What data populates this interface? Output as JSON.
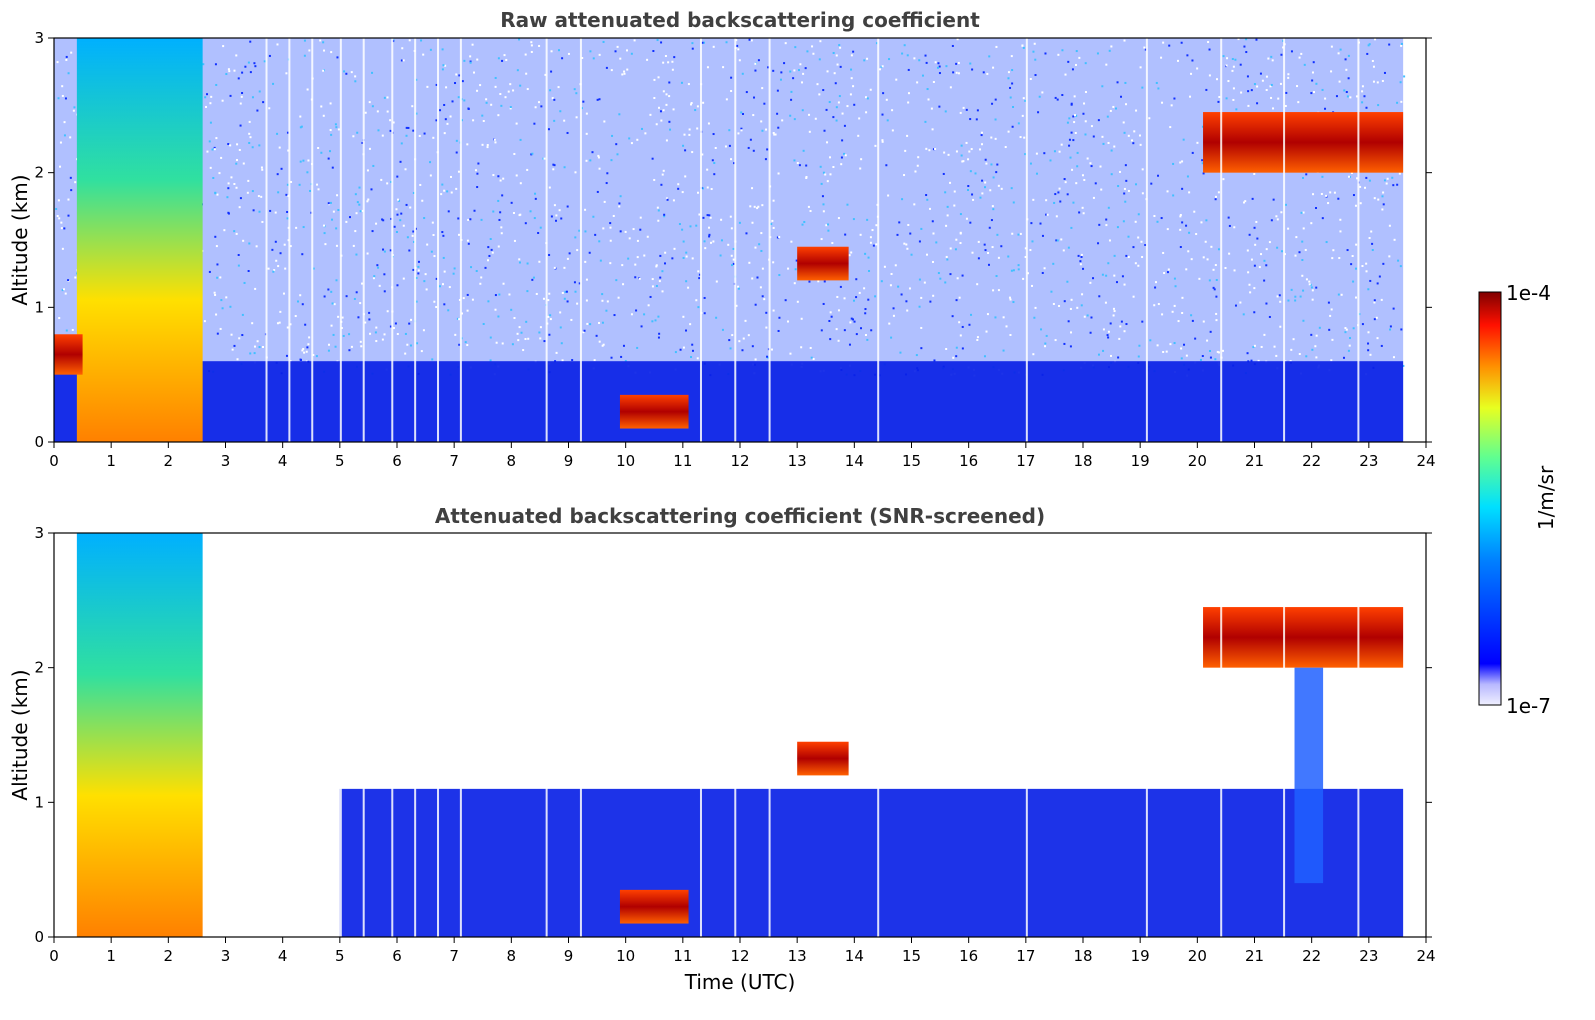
{
  "chart_data": [
    {
      "type": "heatmap",
      "title": "Raw attenuated backscattering coefficient",
      "xlabel": "",
      "ylabel": "Altitude (km)",
      "xlim": [
        0,
        24
      ],
      "ylim": [
        0,
        3
      ],
      "xticks": [
        "0",
        "1",
        "2",
        "3",
        "4",
        "5",
        "6",
        "7",
        "8",
        "9",
        "10",
        "11",
        "12",
        "13",
        "14",
        "15",
        "16",
        "17",
        "18",
        "19",
        "20",
        "21",
        "22",
        "23",
        "24"
      ],
      "yticks": [
        "0",
        "1",
        "2",
        "3"
      ],
      "data_end_time": 23.6,
      "features": [
        {
          "region": "surface boundary layer",
          "x": [
            0,
            23.6
          ],
          "y": [
            0,
            0.6
          ],
          "level": "low (1e-6)"
        },
        {
          "region": "precipitation streaks",
          "x": [
            0.4,
            2.6
          ],
          "y": [
            0,
            3
          ],
          "level": "high"
        },
        {
          "region": "low cloud",
          "x": [
            0,
            0.5
          ],
          "y": [
            0.5,
            0.8
          ],
          "level": "high"
        },
        {
          "region": "cloud",
          "x": [
            9.9,
            11.1
          ],
          "y": [
            0.1,
            0.35
          ],
          "level": "high"
        },
        {
          "region": "cloud",
          "x": [
            13.0,
            13.9
          ],
          "y": [
            1.2,
            1.45
          ],
          "level": "high"
        },
        {
          "region": "cloud layer",
          "x": [
            20.1,
            23.6
          ],
          "y": [
            2.0,
            2.45
          ],
          "level": "very high (1e-4)"
        },
        {
          "region": "noise above boundary layer",
          "x": [
            0,
            23.6
          ],
          "y": [
            0.6,
            3
          ],
          "level": "noisy"
        }
      ]
    },
    {
      "type": "heatmap",
      "title": "Attenuated backscattering coefficient (SNR-screened)",
      "xlabel": "Time (UTC)",
      "ylabel": "Altitude (km)",
      "xlim": [
        0,
        24
      ],
      "ylim": [
        0,
        3
      ],
      "xticks": [
        "0",
        "1",
        "2",
        "3",
        "4",
        "5",
        "6",
        "7",
        "8",
        "9",
        "10",
        "11",
        "12",
        "13",
        "14",
        "15",
        "16",
        "17",
        "18",
        "19",
        "20",
        "21",
        "22",
        "23",
        "24"
      ],
      "yticks": [
        "0",
        "1",
        "2",
        "3"
      ],
      "data_end_time": 23.6,
      "features": [
        {
          "region": "boundary layer",
          "x": [
            5,
            23.6
          ],
          "y": [
            0,
            1.1
          ],
          "level": "low"
        },
        {
          "region": "precipitation streaks",
          "x": [
            0.4,
            2.6
          ],
          "y": [
            0,
            3
          ],
          "level": "high"
        },
        {
          "region": "cloud",
          "x": [
            9.9,
            11.1
          ],
          "y": [
            0.1,
            0.35
          ],
          "level": "very high"
        },
        {
          "region": "cloud",
          "x": [
            13.0,
            13.9
          ],
          "y": [
            1.2,
            1.45
          ],
          "level": "high"
        },
        {
          "region": "cloud layer",
          "x": [
            20.1,
            23.6
          ],
          "y": [
            2.0,
            2.45
          ],
          "level": "very high (1e-4)"
        },
        {
          "region": "vertical column",
          "x": [
            21.7,
            22.2
          ],
          "y": [
            0.4,
            2.0
          ],
          "level": "low"
        }
      ]
    }
  ],
  "colorbar": {
    "label": "1/m/sr",
    "max_label": "1e-4",
    "min_label": "1e-7",
    "scale": "log",
    "range": [
      1e-07,
      0.0001
    ],
    "colormap": "jet"
  },
  "colors": {
    "title": "#404040",
    "noise_blue": "#1a3cff",
    "bl_blue": "#0a22e6",
    "cloud_red": "#c80000",
    "cloud_dark": "#4a0000"
  }
}
